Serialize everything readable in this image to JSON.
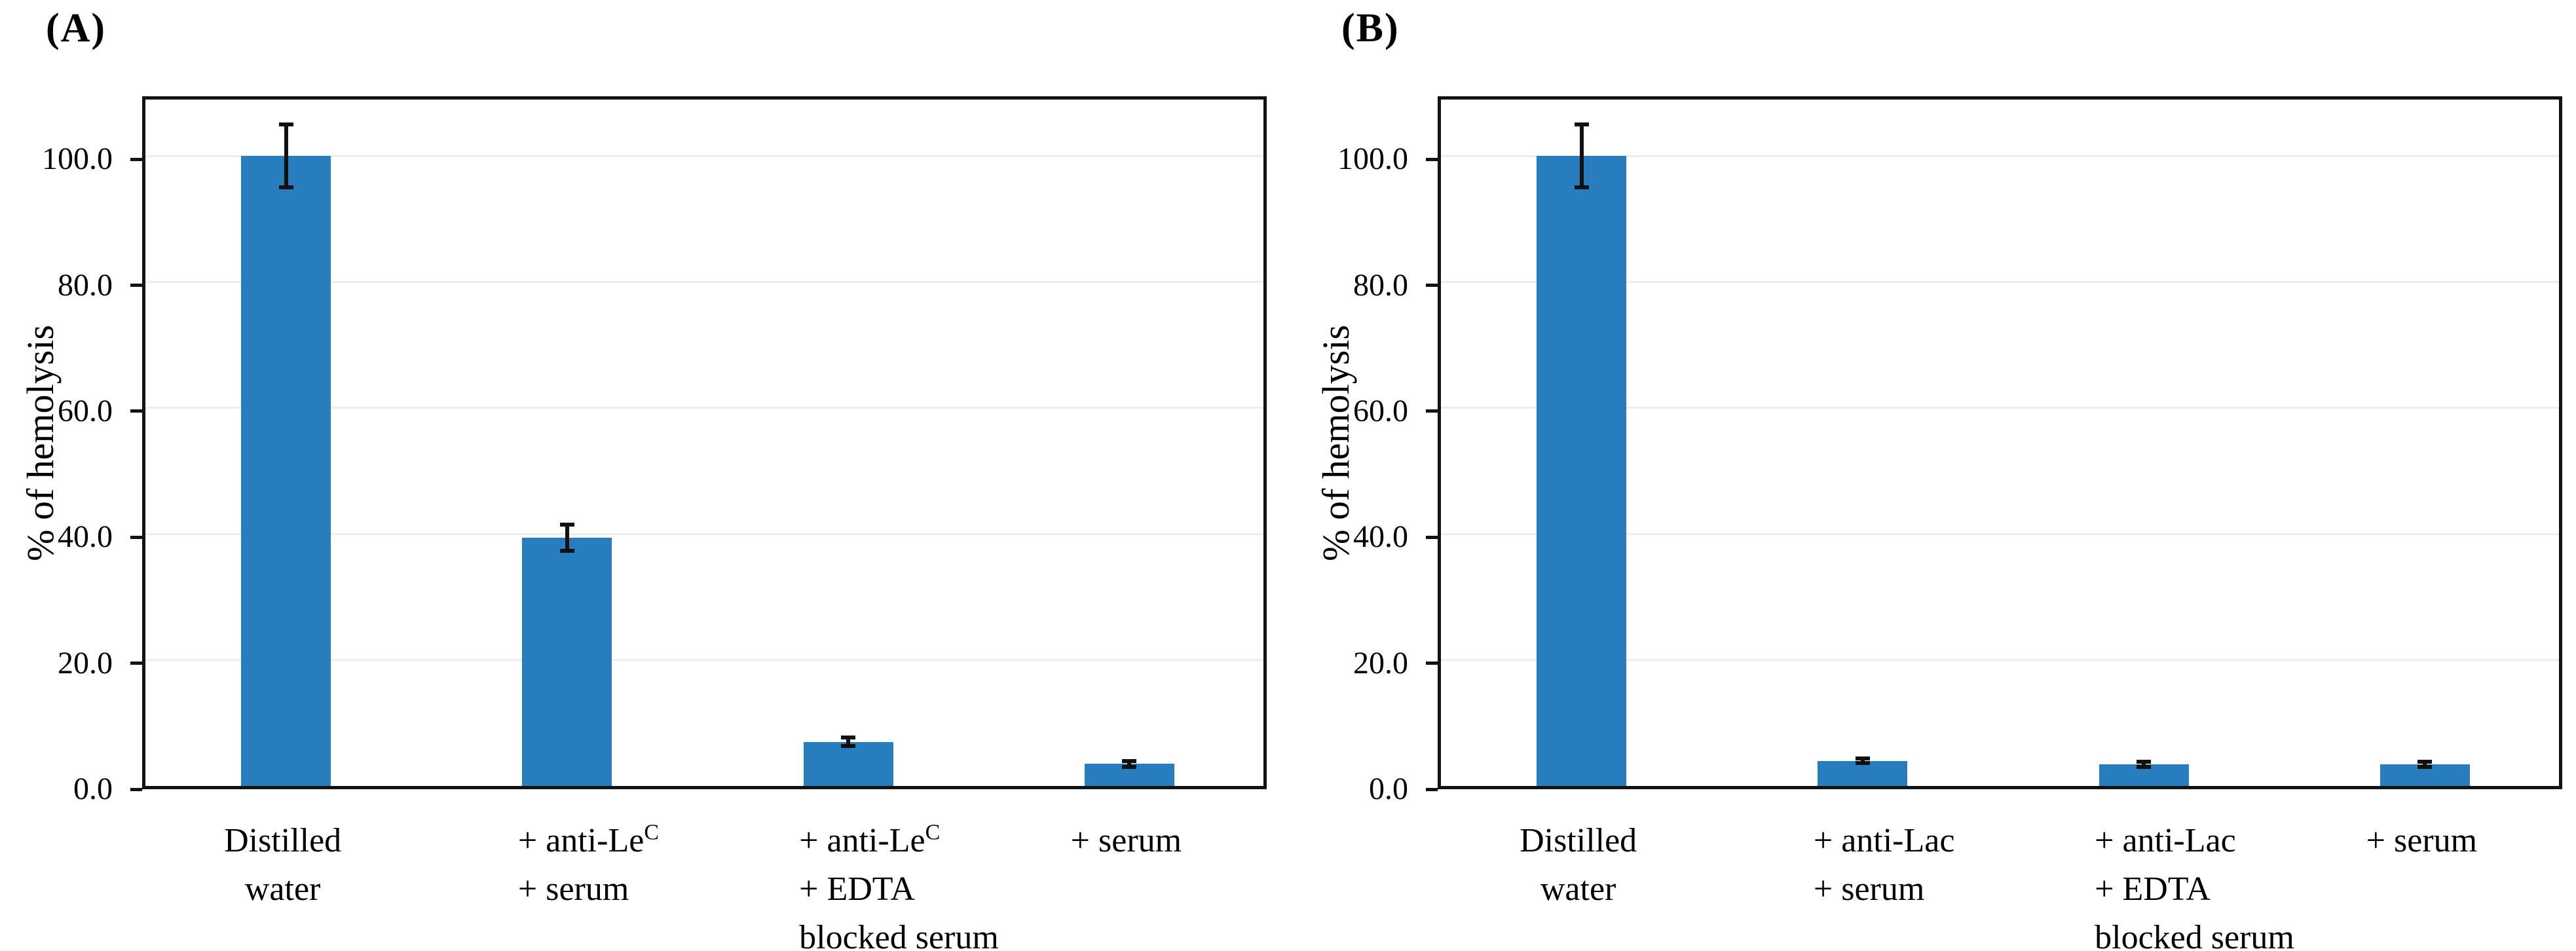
{
  "figure": {
    "bar_color": "#287DBE",
    "axis_color": "#131313",
    "grid_color": "#EDEDED",
    "error_bar_color": "#111111",
    "text_color": "#000000"
  },
  "chart_data": [
    {
      "type": "bar",
      "panel_label": "(A)",
      "title": "",
      "xlabel": "",
      "ylabel": "% of hemolysis",
      "ylim": [
        0,
        110
      ],
      "yticks": [
        0,
        20,
        40,
        60,
        80,
        100
      ],
      "ytick_labels": [
        "0.0",
        "20.0",
        "40.0",
        "60.0",
        "80.0",
        "100.0"
      ],
      "grid": true,
      "legend_position": "none",
      "categories": [
        {
          "lines": [
            "Distilled",
            "water"
          ],
          "align": "center"
        },
        {
          "lines": [
            "+ anti-Le^C",
            "+ serum"
          ],
          "align": "left"
        },
        {
          "lines": [
            "+ anti-Le^C",
            "+ EDTA",
            "blocked serum"
          ],
          "align": "left"
        },
        {
          "lines": [
            "+ serum"
          ],
          "align": "center"
        }
      ],
      "values": [
        100.0,
        39.4,
        7.0,
        3.5
      ],
      "errors": [
        5.0,
        2.1,
        0.7,
        0.5
      ]
    },
    {
      "type": "bar",
      "panel_label": "(B)",
      "title": "",
      "xlabel": "",
      "ylabel": "% of hemolysis",
      "ylim": [
        0,
        110
      ],
      "yticks": [
        0,
        20,
        40,
        60,
        80,
        100
      ],
      "ytick_labels": [
        "0.0",
        "20.0",
        "40.0",
        "60.0",
        "80.0",
        "100.0"
      ],
      "grid": true,
      "legend_position": "none",
      "categories": [
        {
          "lines": [
            "Distilled",
            "water"
          ],
          "align": "center"
        },
        {
          "lines": [
            "+ anti-Lac",
            "+ serum"
          ],
          "align": "left"
        },
        {
          "lines": [
            "+ anti-Lac",
            "+ EDTA",
            "blocked serum"
          ],
          "align": "left"
        },
        {
          "lines": [
            "+ serum"
          ],
          "align": "center"
        }
      ],
      "values": [
        100.0,
        4.0,
        3.4,
        3.4
      ],
      "errors": [
        5.0,
        0.4,
        0.4,
        0.4
      ]
    }
  ]
}
